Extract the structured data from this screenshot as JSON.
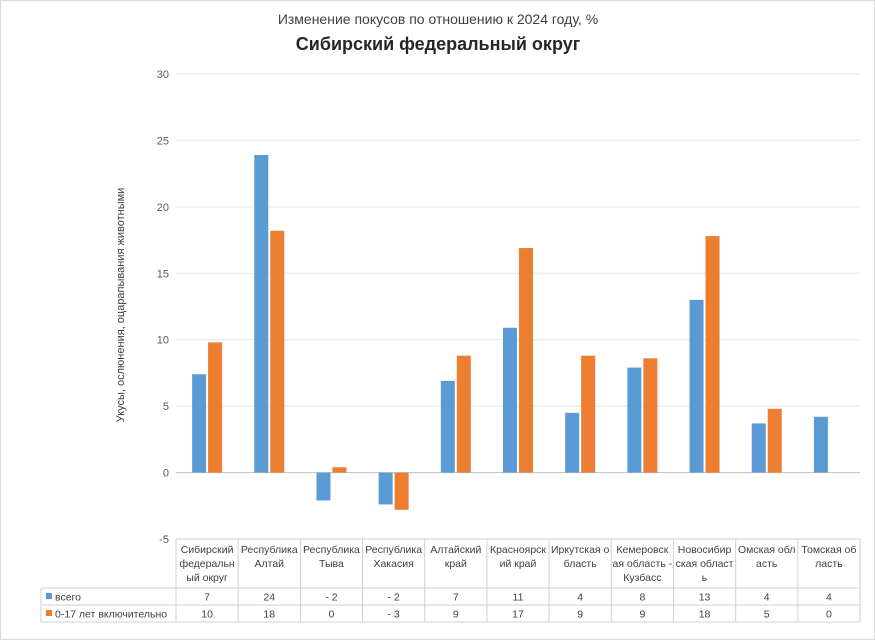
{
  "chart_data": {
    "type": "bar",
    "title": "Сибирский федеральный округ",
    "subtitle": "Изменение покусов по отношению к 2024 году, %",
    "ylabel": "Укусы, ослюнения, оцарапывания животными",
    "ylim": [
      -5,
      30
    ],
    "yticks": [
      -5,
      0,
      5,
      10,
      15,
      20,
      25,
      30
    ],
    "grid": true,
    "legend": "table-left",
    "categories": [
      [
        "Сибирский",
        "федеральн",
        "ый округ"
      ],
      [
        "Республика",
        "Алтай"
      ],
      [
        "Республика",
        "Тыва"
      ],
      [
        "Республика",
        "Хакасия"
      ],
      [
        "Алтайский",
        "край"
      ],
      [
        "Красноярск",
        "ий край"
      ],
      [
        "Иркутская о",
        "бласть"
      ],
      [
        "Кемеровск",
        "ая область -",
        "Кузбасс"
      ],
      [
        "Новосибир",
        "ская област",
        "ь"
      ],
      [
        "Омская обл",
        "асть"
      ],
      [
        "Томская об",
        "ласть"
      ]
    ],
    "series": [
      {
        "name": "всего",
        "color": "#5b9bd5",
        "values": [
          7.4,
          23.9,
          -2.1,
          -2.4,
          6.9,
          10.9,
          4.5,
          7.9,
          13.0,
          3.7,
          4.2
        ],
        "table": [
          "7",
          "24",
          "- 2",
          "- 2",
          "7",
          "11",
          "4",
          "8",
          "13",
          "4",
          "4"
        ]
      },
      {
        "name": "0-17 лет включительно",
        "color": "#ed7d31",
        "values": [
          9.8,
          18.2,
          0.4,
          -2.8,
          8.8,
          16.9,
          8.8,
          8.6,
          17.8,
          4.8,
          0
        ],
        "table": [
          "10",
          "18",
          "0",
          "- 3",
          "9",
          "17",
          "9",
          "9",
          "18",
          "5",
          "0"
        ]
      }
    ]
  }
}
